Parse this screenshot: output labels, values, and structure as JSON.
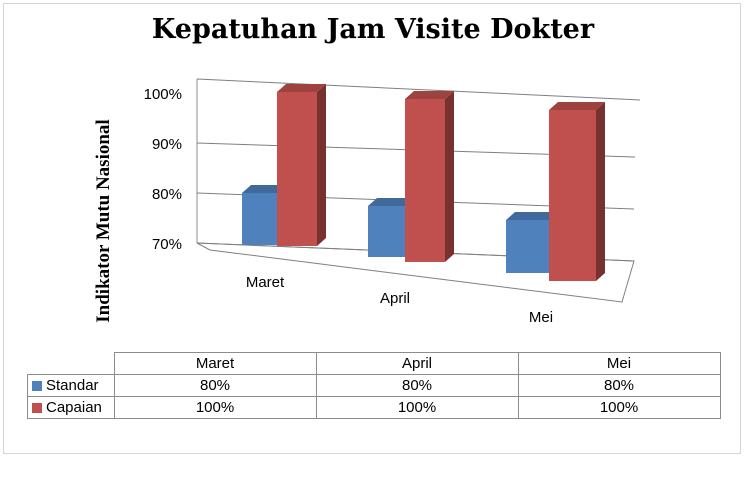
{
  "chart_data": {
    "type": "bar",
    "title": "Kepatuhan Jam Visite Dokter",
    "ylabel": "Indikator Mutu Nasional",
    "xlabel": "",
    "categories": [
      "Maret",
      "April",
      "Mei"
    ],
    "ylim": [
      70,
      100
    ],
    "yticks": [
      "70%",
      "80%",
      "90%",
      "100%"
    ],
    "grid": true,
    "three_d": true,
    "series": [
      {
        "name": "Standar",
        "values": [
          80,
          80,
          80
        ],
        "color": "#4f81bd"
      },
      {
        "name": "Capaian",
        "values": [
          100,
          100,
          100
        ],
        "color": "#c0504d"
      }
    ],
    "table": {
      "rows": [
        {
          "label": "Standar",
          "cells": [
            "80%",
            "80%",
            "80%"
          ]
        },
        {
          "label": "Capaian",
          "cells": [
            "100%",
            "100%",
            "100%"
          ]
        }
      ]
    }
  }
}
